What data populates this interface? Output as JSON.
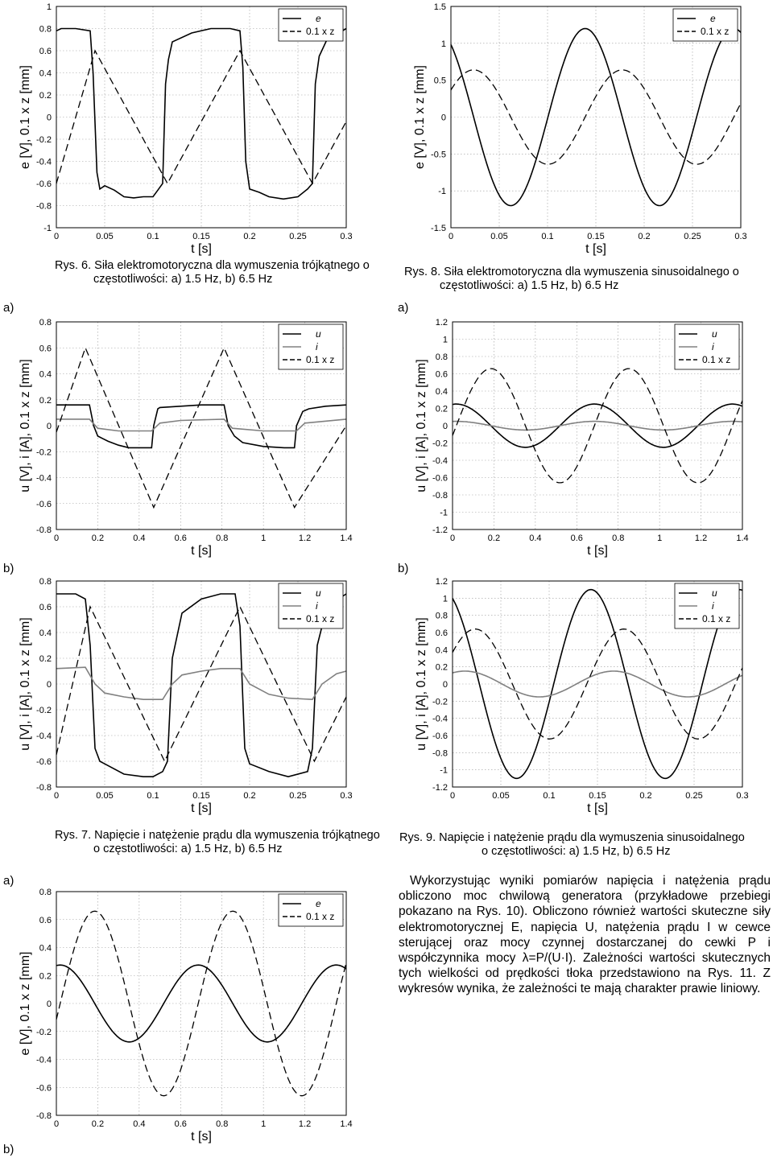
{
  "figures": {
    "fig6": {
      "caption_line1": "Rys. 6. Siła elektromotoryczna dla wymuszenia trójkątnego o",
      "caption_line2": "częstotliwości: a) 1.5 Hz, b) 6.5 Hz"
    },
    "fig7": {
      "caption_line1": "Rys. 7. Napięcie i natężenie prądu dla wymuszenia trójkątnego",
      "caption_line2": "o częstotliwości: a) 1.5 Hz, b) 6.5 Hz"
    },
    "fig8": {
      "caption_line1": "Rys. 8. Siła elektromotoryczna dla wymuszenia sinusoidalnego o",
      "caption_line2": "częstotliwości: a) 1.5 Hz, b) 6.5 Hz"
    },
    "fig9": {
      "caption_line1": "Rys. 9. Napięcie i natężenie prądu dla wymuszenia sinusoidalnego",
      "caption_line2": "o częstotliwości: a) 1.5 Hz, b) 6.5 Hz"
    }
  },
  "panel_labels": {
    "fig7a": "a)",
    "fig7b": "b)",
    "fig9a": "a)",
    "fig9b": "b)",
    "fig10a": "a)",
    "fig10b": "b)"
  },
  "body_text": "Wykorzystując wyniki pomiarów napięcia i natężenia prądu obliczono moc chwilową generatora (przykładowe przebiegi pokazano na Rys. 10). Obliczono również wartości skuteczne siły elektromotorycznej E, napięcia U, natężenia prądu I w cewce sterującej oraz mocy czynnej dostarczanej do cewki P i współczynnika mocy λ=P/(U·I). Zależności wartości skutecznych tych wielkości od prędkości tłoka przedstawiono na Rys. 11. Z wykresów wynika, że zależności te mają charakter prawie liniowy.",
  "chart_data": [
    {
      "id": "fig6b",
      "type": "line",
      "xlabel": "t [s]",
      "ylabel": "e [V], 0.1 x z [mm]",
      "xlim": [
        0,
        0.3
      ],
      "ylim": [
        -1,
        1
      ],
      "xticks": [
        "0",
        "0.05",
        "0.1",
        "0.15",
        "0.2",
        "0.25",
        "0.3"
      ],
      "yticks": [
        "-1",
        "-0.8",
        "-0.6",
        "-0.4",
        "-0.2",
        "0",
        "0.2",
        "0.4",
        "0.6",
        "0.8",
        "1"
      ],
      "grid": true,
      "legend": "top-right",
      "series": [
        {
          "name": "e",
          "style": "solid",
          "color": "#000000",
          "x": [
            0,
            0.005,
            0.02,
            0.035,
            0.038,
            0.042,
            0.045,
            0.05,
            0.06,
            0.07,
            0.08,
            0.09,
            0.1,
            0.105,
            0.11,
            0.113,
            0.116,
            0.12,
            0.14,
            0.16,
            0.18,
            0.19,
            0.193,
            0.196,
            0.2,
            0.21,
            0.22,
            0.235,
            0.25,
            0.26,
            0.265,
            0.268,
            0.272,
            0.28,
            0.3
          ],
          "y": [
            0.78,
            0.8,
            0.8,
            0.78,
            0.4,
            -0.5,
            -0.65,
            -0.62,
            -0.66,
            -0.72,
            -0.73,
            -0.72,
            -0.72,
            -0.66,
            -0.6,
            0.3,
            0.52,
            0.68,
            0.76,
            0.8,
            0.8,
            0.78,
            0.45,
            -0.4,
            -0.65,
            -0.68,
            -0.72,
            -0.74,
            -0.72,
            -0.65,
            -0.6,
            0.3,
            0.55,
            0.7,
            0.8
          ]
        },
        {
          "name": "0.1 x z",
          "style": "dashed",
          "color": "#000000",
          "x": [
            0,
            0.04,
            0.115,
            0.19,
            0.265,
            0.3
          ],
          "y": [
            -0.6,
            0.6,
            -0.6,
            0.6,
            -0.6,
            -0.04
          ]
        }
      ]
    },
    {
      "id": "fig7a",
      "type": "line",
      "xlabel": "t [s]",
      "ylabel": "u [V], i [A], 0.1 x z [mm]",
      "xlim": [
        0,
        1.4
      ],
      "ylim": [
        -0.8,
        0.8
      ],
      "xticks": [
        "0",
        "0.2",
        "0.4",
        "0.6",
        "0.8",
        "1",
        "1.2",
        "1.4"
      ],
      "yticks": [
        "-0.8",
        "-0.6",
        "-0.4",
        "-0.2",
        "0",
        "0.2",
        "0.4",
        "0.6",
        "0.8"
      ],
      "grid": true,
      "legend": "top-right",
      "series": [
        {
          "name": "u",
          "style": "solid",
          "color": "#000000",
          "x": [
            0,
            0.16,
            0.18,
            0.2,
            0.25,
            0.3,
            0.35,
            0.46,
            0.47,
            0.49,
            0.5,
            0.6,
            0.7,
            0.81,
            0.83,
            0.86,
            0.9,
            1.0,
            1.1,
            1.15,
            1.16,
            1.19,
            1.22,
            1.3,
            1.4
          ],
          "y": [
            0.16,
            0.16,
            0.0,
            -0.08,
            -0.12,
            -0.15,
            -0.17,
            -0.17,
            0.0,
            0.13,
            0.14,
            0.15,
            0.16,
            0.16,
            0.0,
            -0.08,
            -0.13,
            -0.16,
            -0.17,
            -0.17,
            0.0,
            0.11,
            0.13,
            0.15,
            0.16
          ]
        },
        {
          "name": "i",
          "style": "solid",
          "color": "#808080",
          "x": [
            0,
            0.16,
            0.2,
            0.3,
            0.46,
            0.5,
            0.6,
            0.81,
            0.85,
            1.0,
            1.16,
            1.2,
            1.4
          ],
          "y": [
            0.05,
            0.05,
            -0.02,
            -0.04,
            -0.04,
            0.02,
            0.04,
            0.05,
            -0.02,
            -0.04,
            -0.04,
            0.02,
            0.05
          ]
        },
        {
          "name": "0.1 x z",
          "style": "dashed",
          "color": "#000000",
          "x": [
            0,
            0.14,
            0.47,
            0.81,
            1.15,
            1.4
          ],
          "y": [
            -0.05,
            0.6,
            -0.63,
            0.6,
            -0.63,
            0.0
          ]
        }
      ]
    },
    {
      "id": "fig7b",
      "type": "line",
      "xlabel": "t [s]",
      "ylabel": "u [V], i [A], 0.1 x z [mm]",
      "xlim": [
        0,
        0.3
      ],
      "ylim": [
        -0.8,
        0.8
      ],
      "xticks": [
        "0",
        "0.05",
        "0.1",
        "0.15",
        "0.2",
        "0.25",
        "0.3"
      ],
      "yticks": [
        "-0.8",
        "-0.6",
        "-0.4",
        "-0.2",
        "0",
        "0.2",
        "0.4",
        "0.6",
        "0.8"
      ],
      "grid": true,
      "legend": "top-right",
      "series": [
        {
          "name": "u",
          "style": "solid",
          "color": "#000000",
          "x": [
            0,
            0.02,
            0.03,
            0.035,
            0.04,
            0.045,
            0.05,
            0.07,
            0.09,
            0.1,
            0.11,
            0.115,
            0.12,
            0.13,
            0.15,
            0.17,
            0.185,
            0.19,
            0.195,
            0.2,
            0.22,
            0.24,
            0.26,
            0.265,
            0.27,
            0.28,
            0.3
          ],
          "y": [
            0.7,
            0.7,
            0.66,
            0.3,
            -0.5,
            -0.6,
            -0.62,
            -0.7,
            -0.72,
            -0.72,
            -0.68,
            -0.6,
            0.2,
            0.55,
            0.66,
            0.7,
            0.7,
            0.45,
            -0.5,
            -0.62,
            -0.68,
            -0.72,
            -0.68,
            -0.5,
            0.3,
            0.6,
            0.7
          ]
        },
        {
          "name": "i",
          "style": "solid",
          "color": "#808080",
          "x": [
            0,
            0.03,
            0.04,
            0.05,
            0.07,
            0.09,
            0.11,
            0.12,
            0.13,
            0.15,
            0.17,
            0.19,
            0.2,
            0.22,
            0.24,
            0.265,
            0.275,
            0.29,
            0.3
          ],
          "y": [
            0.12,
            0.13,
            0.0,
            -0.07,
            -0.1,
            -0.12,
            -0.12,
            0.0,
            0.07,
            0.1,
            0.12,
            0.12,
            0.0,
            -0.08,
            -0.11,
            -0.12,
            0.0,
            0.08,
            0.1
          ]
        },
        {
          "name": "0.1 x z",
          "style": "dashed",
          "color": "#000000",
          "x": [
            0,
            0.035,
            0.112,
            0.19,
            0.267,
            0.3
          ],
          "y": [
            -0.55,
            0.6,
            -0.6,
            0.6,
            -0.6,
            -0.1
          ]
        }
      ]
    },
    {
      "id": "fig10a",
      "type": "line",
      "xlabel": "t [s]",
      "ylabel": "e [V], 0.1 x z [mm]",
      "xlim": [
        0,
        1.4
      ],
      "ylim": [
        -0.8,
        0.8
      ],
      "xticks": [
        "0",
        "0.2",
        "0.4",
        "0.6",
        "0.8",
        "1",
        "1.2",
        "1.4"
      ],
      "yticks": [
        "-0.8",
        "-0.6",
        "-0.4",
        "-0.2",
        "0",
        "0.2",
        "0.4",
        "0.6",
        "0.8"
      ],
      "grid": true,
      "legend": "top-right",
      "series": [
        {
          "name": "e",
          "style": "sine",
          "color": "#000000",
          "amp": 0.275,
          "freq": 1.5,
          "phase_deg": 80
        },
        {
          "name": "0.1 x z",
          "style": "dashed",
          "color": "#000000",
          "amp": 0.66,
          "freq": 1.5,
          "phase_deg": -10
        }
      ]
    },
    {
      "id": "fig8b",
      "type": "line",
      "xlabel": "t [s]",
      "ylabel": "e [V], 0.1 x z [mm]",
      "xlim": [
        0,
        0.3
      ],
      "ylim": [
        -1.5,
        1.5
      ],
      "xticks": [
        "0",
        "0.05",
        "0.1",
        "0.15",
        "0.2",
        "0.25",
        "0.3"
      ],
      "yticks": [
        "-1.5",
        "-1",
        "-0.5",
        "0",
        "0.5",
        "1",
        "1.5"
      ],
      "grid": true,
      "legend": "top-right",
      "series": [
        {
          "name": "e",
          "style": "sine",
          "color": "#000000",
          "amp": 1.2,
          "freq": 6.5,
          "phase_deg": 125
        },
        {
          "name": "0.1 x z",
          "style": "dashed",
          "color": "#000000",
          "amp": 0.64,
          "freq": 6.5,
          "phase_deg": 35
        }
      ]
    },
    {
      "id": "fig9a",
      "type": "line",
      "xlabel": "t [s]",
      "ylabel": "u [V], i [A], 0.1 x z [mm]",
      "xlim": [
        0,
        1.4
      ],
      "ylim": [
        -1.2,
        1.2
      ],
      "xticks": [
        "0",
        "0.2",
        "0.4",
        "0.6",
        "0.8",
        "1",
        "1.2",
        "1.4"
      ],
      "yticks": [
        "-1.2",
        "-1",
        "-0.8",
        "-0.6",
        "-0.4",
        "-0.2",
        "0",
        "0.2",
        "0.4",
        "0.6",
        "0.8",
        "1",
        "1.2"
      ],
      "grid": true,
      "legend": "top-right",
      "series": [
        {
          "name": "u",
          "style": "sine",
          "color": "#000000",
          "amp": 0.25,
          "freq": 1.5,
          "phase_deg": 80
        },
        {
          "name": "i",
          "style": "sine",
          "color": "#808080",
          "amp": 0.05,
          "freq": 1.5,
          "phase_deg": 80
        },
        {
          "name": "0.1 x z",
          "style": "dashed",
          "color": "#000000",
          "amp": 0.66,
          "freq": 1.5,
          "phase_deg": -10
        }
      ]
    },
    {
      "id": "fig9b",
      "type": "line",
      "xlabel": "t [s]",
      "ylabel": "u [V], i [A], 0.1 x z [mm]",
      "xlim": [
        0,
        0.3
      ],
      "ylim": [
        -1.2,
        1.2
      ],
      "xticks": [
        "0",
        "0.05",
        "0.1",
        "0.15",
        "0.2",
        "0.25",
        "0.3"
      ],
      "yticks": [
        "-1.2",
        "-1",
        "-0.8",
        "-0.6",
        "-0.4",
        "-0.2",
        "0",
        "0.2",
        "0.4",
        "0.6",
        "0.8",
        "1",
        "1.2"
      ],
      "grid": true,
      "legend": "top-right",
      "series": [
        {
          "name": "u",
          "style": "sine",
          "color": "#000000",
          "amp": 1.1,
          "freq": 6.5,
          "phase_deg": 115
        },
        {
          "name": "i",
          "style": "sine",
          "color": "#808080",
          "amp": 0.15,
          "freq": 6.5,
          "phase_deg": 60
        },
        {
          "name": "0.1 x z",
          "style": "dashed",
          "color": "#000000",
          "amp": 0.64,
          "freq": 6.5,
          "phase_deg": 35
        }
      ]
    }
  ]
}
